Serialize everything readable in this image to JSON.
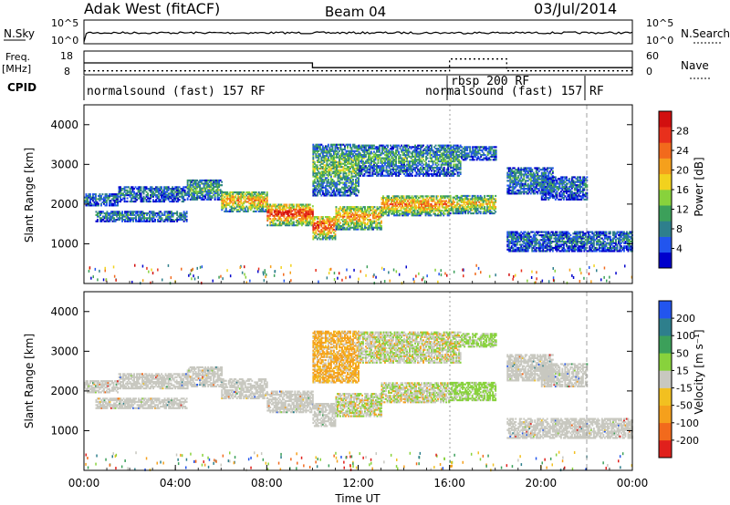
{
  "header": {
    "station": "Adak West (fitACF)",
    "beam": "Beam 04",
    "date": "03/Jul/2014"
  },
  "top_strips": {
    "left_labels": {
      "nsky": "N.Sky",
      "freq_line1": "Freq.",
      "freq_line2": "[MHz]",
      "cpid": "CPID"
    },
    "right_labels": {
      "nsearch": "N.Search",
      "nave": "Nave"
    },
    "nsky_ticks": [
      "10^5",
      "10^0"
    ],
    "nsearch_ticks": [
      "10^5",
      "10^0"
    ],
    "freq_ticks": [
      "18",
      "8"
    ],
    "nave_ticks": [
      "60",
      "0"
    ],
    "cpid_segments": [
      {
        "label": "normalsound (fast) 157 RF",
        "start_hour": 0.1
      },
      {
        "label": "rbsp 200 RF",
        "start_hour": 16.0
      },
      {
        "label": "normalsound (fast) 157 RF",
        "start_hour": 16.0
      }
    ],
    "freq_steps": [
      {
        "from": 0,
        "to": 10,
        "value": 13
      },
      {
        "from": 10,
        "to": 24,
        "value": 11
      }
    ],
    "nave_steps": [
      {
        "from": 0,
        "to": 16,
        "value": 10
      },
      {
        "from": 16,
        "to": 18.5,
        "value": 40
      },
      {
        "from": 18.5,
        "to": 22,
        "value": 10
      },
      {
        "from": 22,
        "to": 24,
        "value": 10
      }
    ]
  },
  "chart_data": [
    {
      "type": "heatmap",
      "name": "power-panel",
      "ylabel": "Slant Range [km]",
      "ylim": [
        0,
        4500
      ],
      "yticks": [
        "1000",
        "2000",
        "3000",
        "4000"
      ],
      "xlim": [
        0,
        24
      ],
      "colorbar": {
        "label": "Power [dB]",
        "ticks": [
          "4",
          "8",
          "12",
          "16",
          "20",
          "24",
          "28"
        ],
        "range": [
          0,
          32
        ],
        "colors": [
          "#0000cc",
          "#2255ee",
          "#2e7f8c",
          "#3ca05a",
          "#88d23c",
          "#f2d21e",
          "#f5a01c",
          "#f26a1c",
          "#e8301c",
          "#d20f0f"
        ]
      },
      "echo_bands": [
        {
          "t0": 0.0,
          "t1": 1.5,
          "r0": 1950,
          "r1": 2250,
          "intensity": 0.25
        },
        {
          "t0": 1.5,
          "t1": 4.5,
          "r0": 2050,
          "r1": 2450,
          "intensity": 0.25
        },
        {
          "t0": 0.5,
          "t1": 4.5,
          "r0": 1550,
          "r1": 1800,
          "intensity": 0.3
        },
        {
          "t0": 4.5,
          "t1": 6.0,
          "r0": 2100,
          "r1": 2600,
          "intensity": 0.4
        },
        {
          "t0": 6.0,
          "t1": 8.0,
          "r0": 1800,
          "r1": 2300,
          "intensity": 0.7
        },
        {
          "t0": 8.0,
          "t1": 10.0,
          "r0": 1450,
          "r1": 2000,
          "intensity": 0.9
        },
        {
          "t0": 10.0,
          "t1": 11.0,
          "r0": 1100,
          "r1": 1700,
          "intensity": 0.85
        },
        {
          "t0": 11.0,
          "t1": 13.0,
          "r0": 1350,
          "r1": 1950,
          "intensity": 0.7
        },
        {
          "t0": 13.0,
          "t1": 16.0,
          "r0": 1700,
          "r1": 2200,
          "intensity": 0.75
        },
        {
          "t0": 16.0,
          "t1": 18.0,
          "r0": 1750,
          "r1": 2200,
          "intensity": 0.6
        },
        {
          "t0": 10.0,
          "t1": 12.0,
          "r0": 2200,
          "r1": 3500,
          "intensity": 0.45
        },
        {
          "t0": 12.0,
          "t1": 16.5,
          "r0": 2700,
          "r1": 3500,
          "intensity": 0.35
        },
        {
          "t0": 16.5,
          "t1": 18.0,
          "r0": 3100,
          "r1": 3450,
          "intensity": 0.3
        },
        {
          "t0": 18.5,
          "t1": 20.5,
          "r0": 2250,
          "r1": 2900,
          "intensity": 0.3
        },
        {
          "t0": 20.0,
          "t1": 22.0,
          "r0": 2100,
          "r1": 2700,
          "intensity": 0.25
        },
        {
          "t0": 18.5,
          "t1": 24.0,
          "r0": 800,
          "r1": 1300,
          "intensity": 0.25
        }
      ]
    },
    {
      "type": "heatmap",
      "name": "velocity-panel",
      "ylabel": "Slant Range [km]",
      "ylim": [
        0,
        4500
      ],
      "yticks": [
        "1000",
        "2000",
        "3000",
        "4000"
      ],
      "xlabel": "Time UT",
      "xticks": [
        "00:00",
        "04:00",
        "08:00",
        "12:00",
        "16:00",
        "20:00",
        "00:00"
      ],
      "xlim": [
        0,
        24
      ],
      "colorbar": {
        "label": "Velocity [m s⁻¹]",
        "ticks": [
          "-200",
          "-100",
          "-50",
          "-15",
          "15",
          "50",
          "100",
          "200"
        ],
        "range": [
          -250,
          250
        ],
        "colors": [
          "#e0201c",
          "#f26a1c",
          "#f5a01c",
          "#f2c020",
          "#c8c8c0",
          "#88d23c",
          "#3ca05a",
          "#2e7f8c",
          "#2255ee"
        ]
      },
      "echo_bands": [
        {
          "t0": 0.0,
          "t1": 1.5,
          "r0": 1950,
          "r1": 2250,
          "kind": "ground"
        },
        {
          "t0": 1.5,
          "t1": 4.5,
          "r0": 2050,
          "r1": 2450,
          "kind": "ground"
        },
        {
          "t0": 0.5,
          "t1": 4.5,
          "r0": 1550,
          "r1": 1800,
          "kind": "ground"
        },
        {
          "t0": 4.5,
          "t1": 6.0,
          "r0": 2100,
          "r1": 2600,
          "kind": "ground"
        },
        {
          "t0": 6.0,
          "t1": 8.0,
          "r0": 1800,
          "r1": 2300,
          "kind": "ground"
        },
        {
          "t0": 8.0,
          "t1": 10.0,
          "r0": 1450,
          "r1": 2000,
          "kind": "ground"
        },
        {
          "t0": 10.0,
          "t1": 11.0,
          "r0": 1100,
          "r1": 1700,
          "kind": "ground"
        },
        {
          "t0": 11.0,
          "t1": 13.0,
          "r0": 1350,
          "r1": 1950,
          "kind": "mixed"
        },
        {
          "t0": 13.0,
          "t1": 16.0,
          "r0": 1700,
          "r1": 2200,
          "kind": "mixed"
        },
        {
          "t0": 16.0,
          "t1": 18.0,
          "r0": 1750,
          "r1": 2200,
          "kind": "green"
        },
        {
          "t0": 10.0,
          "t1": 12.0,
          "r0": 2200,
          "r1": 3500,
          "kind": "orange"
        },
        {
          "t0": 12.0,
          "t1": 16.5,
          "r0": 2700,
          "r1": 3500,
          "kind": "mixed"
        },
        {
          "t0": 16.5,
          "t1": 18.0,
          "r0": 3100,
          "r1": 3450,
          "kind": "green"
        },
        {
          "t0": 18.5,
          "t1": 20.5,
          "r0": 2250,
          "r1": 2900,
          "kind": "ground"
        },
        {
          "t0": 20.0,
          "t1": 22.0,
          "r0": 2100,
          "r1": 2700,
          "kind": "ground"
        },
        {
          "t0": 18.5,
          "t1": 24.0,
          "r0": 800,
          "r1": 1300,
          "kind": "ground"
        }
      ]
    }
  ]
}
